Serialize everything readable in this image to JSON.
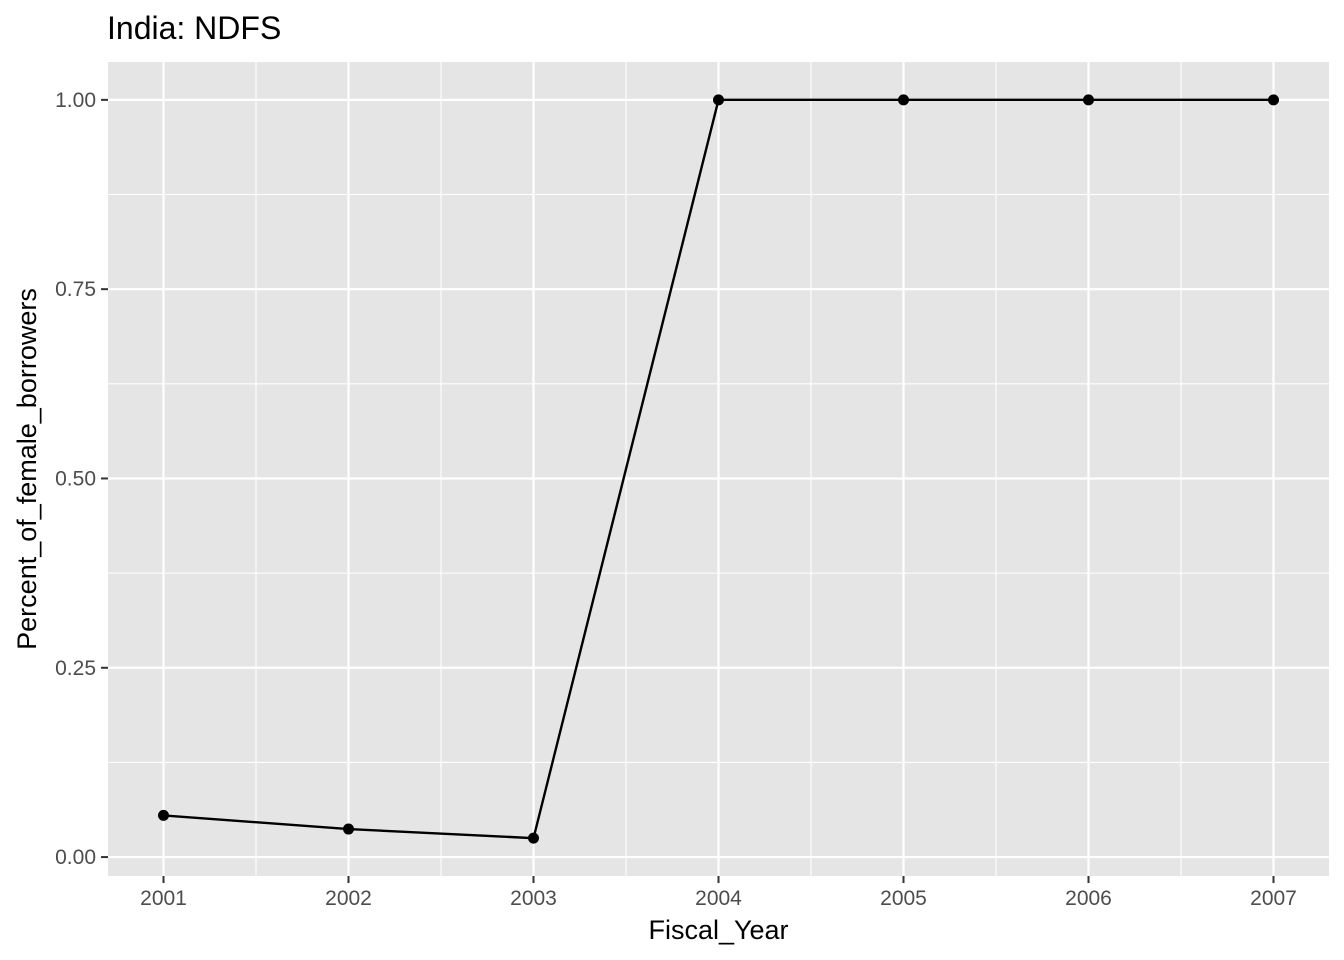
{
  "chart_data": {
    "type": "line",
    "title": "India:  NDFS",
    "xlabel": "Fiscal_Year",
    "ylabel": "Percent_of_female_borrowers",
    "x": [
      2001,
      2002,
      2003,
      2004,
      2005,
      2006,
      2007
    ],
    "x_tick_labels": [
      "2001",
      "2002",
      "2003",
      "2004",
      "2005",
      "2006",
      "2007"
    ],
    "y_tick_labels": [
      "0.00",
      "0.25",
      "0.50",
      "0.75",
      "1.00"
    ],
    "y_ticks": [
      0,
      0.25,
      0.5,
      0.75,
      1.0
    ],
    "xlim": [
      2000.7,
      2007.3
    ],
    "ylim": [
      -0.025,
      1.05
    ],
    "series": [
      {
        "values": [
          0.055,
          0.037,
          0.025,
          1.0,
          1.0,
          1.0,
          1.0
        ]
      }
    ],
    "grid": true,
    "markers": true,
    "colors": {
      "panel_background": "#e5e5e5",
      "grid_major": "#ffffff",
      "line": "#000000",
      "point": "#000000",
      "tick_text": "#4d4d4d",
      "tick_mark": "#333333"
    }
  }
}
